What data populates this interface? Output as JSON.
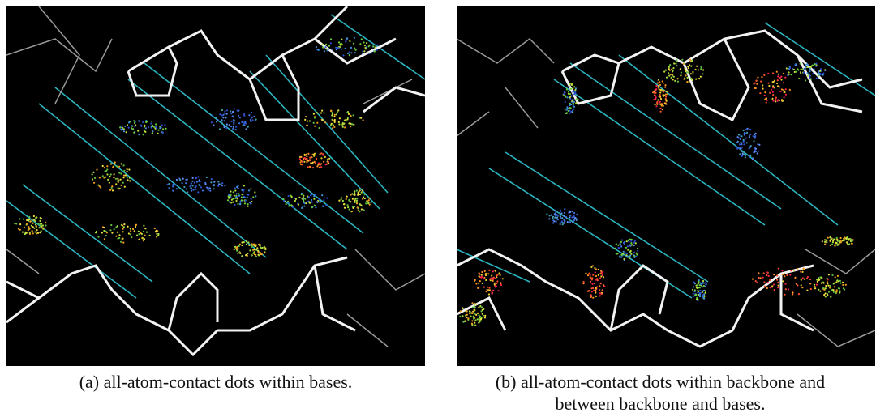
{
  "captions": [
    {
      "lines": [
        "(a) all-atom-contact dots within bases."
      ]
    },
    {
      "lines": [
        "(b) all-atom-contact dots within backbone and",
        "between backbone and bases."
      ]
    }
  ]
}
